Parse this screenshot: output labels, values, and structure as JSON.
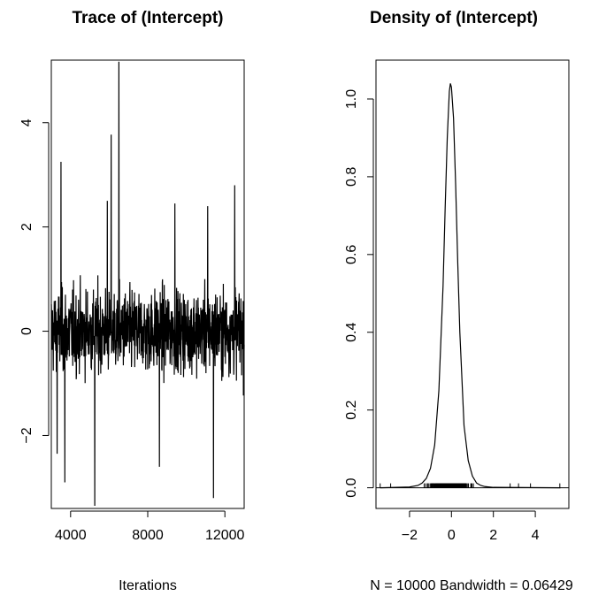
{
  "chart_data": [
    {
      "type": "line",
      "title": "Trace of (Intercept)",
      "xlabel": "Iterations",
      "ylabel": "",
      "xlim": [
        3000,
        13000
      ],
      "ylim": [
        -3.4,
        5.2
      ],
      "xticks": [
        4000,
        8000,
        12000
      ],
      "yticks": [
        -2,
        0,
        2,
        4
      ],
      "series": [
        {
          "description_of_values": "MCMC trace of 10000 iterations (iterations 3001-13000), fluctuating around 0 mostly between -1.3 and 1.3",
          "x_start": 3001,
          "x_end": 13000,
          "center": 0,
          "spikes": [
            {
              "x": 3500,
              "y": 3.25
            },
            {
              "x": 3300,
              "y": -2.35
            },
            {
              "x": 3700,
              "y": -2.9
            },
            {
              "x": 5250,
              "y": -3.35
            },
            {
              "x": 6100,
              "y": 3.77
            },
            {
              "x": 6500,
              "y": 5.17
            },
            {
              "x": 5900,
              "y": 2.5
            },
            {
              "x": 8600,
              "y": -2.6
            },
            {
              "x": 9400,
              "y": 2.45
            },
            {
              "x": 11400,
              "y": -3.2
            },
            {
              "x": 11100,
              "y": 2.4
            },
            {
              "x": 12500,
              "y": 2.8
            }
          ]
        }
      ]
    },
    {
      "type": "line",
      "title": "Density of (Intercept)",
      "xlabel": "N = 10000   Bandwidth = 0.06429",
      "ylabel": "",
      "xlim": [
        -3.6,
        5.6
      ],
      "ylim": [
        -0.01,
        1.1
      ],
      "xticks": [
        -2,
        0,
        2,
        4
      ],
      "yticks": [
        0.0,
        0.2,
        0.4,
        0.6,
        0.8,
        1.0
      ],
      "series": [
        {
          "description_of_values": "kernel density, peak about 1.04 at x = -0.05",
          "x": [
            -3.4,
            -2.0,
            -1.6,
            -1.4,
            -1.2,
            -1.0,
            -0.8,
            -0.6,
            -0.4,
            -0.3,
            -0.2,
            -0.1,
            -0.05,
            0.0,
            0.1,
            0.2,
            0.3,
            0.4,
            0.6,
            0.8,
            1.0,
            1.2,
            1.4,
            1.6,
            2.0,
            5.2
          ],
          "y": [
            0.0,
            0.002,
            0.006,
            0.012,
            0.024,
            0.05,
            0.11,
            0.25,
            0.52,
            0.72,
            0.9,
            1.02,
            1.04,
            1.03,
            0.95,
            0.78,
            0.58,
            0.4,
            0.16,
            0.07,
            0.03,
            0.012,
            0.006,
            0.003,
            0.001,
            0.0
          ]
        }
      ],
      "rug": "dense tick marks along x axis from about -2.6 to 2.6 with outliers up to 5.2 and down to -3.4"
    }
  ]
}
